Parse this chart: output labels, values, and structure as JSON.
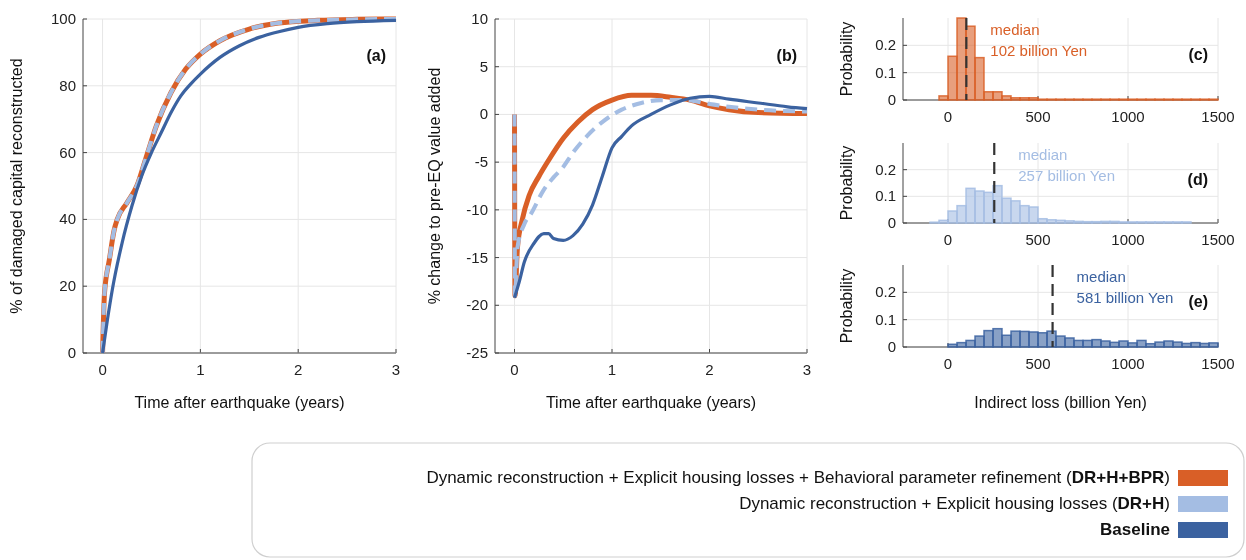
{
  "chart_data": [
    {
      "type": "line",
      "xlabel": "Time after earthquake (years)",
      "ylabel": "% of damaged capital reconstructed",
      "xlim": [
        -0.2,
        3
      ],
      "xticks": [
        0,
        1,
        2,
        3
      ],
      "ylim": [
        0,
        100
      ],
      "yticks": [
        0,
        20,
        40,
        60,
        80,
        100
      ],
      "grid": true,
      "legend": "bottom",
      "annotations": [
        "(a)"
      ],
      "series": [
        {
          "name": "Dynamic reconstruction + Explicit housing losses + Behavioral parameter refinement (DR+H+BPR)",
          "color": "#d95f27",
          "line_style": "solid",
          "x": [
            0,
            0.02,
            0.07,
            0.12,
            0.15,
            0.25,
            0.35,
            0.45,
            0.55,
            0.7,
            0.85,
            1.0,
            1.2,
            1.5,
            1.8,
            2.2,
            2.6,
            3
          ],
          "values": [
            0,
            18,
            28,
            37,
            40,
            45,
            50,
            59,
            68,
            78,
            85,
            89.5,
            93.5,
            97,
            98.8,
            99.6,
            99.9,
            100
          ]
        },
        {
          "name": "Dynamic reconstruction + Explicit housing losses (DR+H)",
          "color": "#a4bde3",
          "line_style": "dashed",
          "x": [
            0,
            0.02,
            0.07,
            0.12,
            0.15,
            0.25,
            0.35,
            0.45,
            0.55,
            0.7,
            0.85,
            1.0,
            1.2,
            1.5,
            1.8,
            2.2,
            2.6,
            3
          ],
          "values": [
            0,
            18,
            28,
            37,
            40,
            45,
            50,
            59,
            68,
            78,
            85,
            89.5,
            93.5,
            97,
            98.8,
            99.6,
            99.9,
            100
          ]
        },
        {
          "name": "Baseline",
          "color": "#3b62a0",
          "line_style": "solid",
          "x": [
            0,
            0.05,
            0.1,
            0.2,
            0.3,
            0.4,
            0.5,
            0.6,
            0.7,
            0.8,
            0.9,
            1.0,
            1.2,
            1.4,
            1.6,
            1.8,
            2.0,
            2.3,
            2.6,
            3
          ],
          "values": [
            0,
            10,
            19,
            33,
            44,
            53,
            60,
            66,
            72,
            77,
            80.5,
            83.5,
            88.5,
            92,
            94.5,
            96.2,
            97.5,
            98.6,
            99.2,
            99.6
          ]
        }
      ]
    },
    {
      "type": "line",
      "xlabel": "Time after earthquake (years)",
      "ylabel": "% change to pre-EQ value added",
      "xlim": [
        -0.2,
        3
      ],
      "xticks": [
        0,
        1,
        2,
        3
      ],
      "ylim": [
        -25,
        10
      ],
      "yticks": [
        -25,
        -20,
        -15,
        -10,
        -5,
        0,
        5,
        10
      ],
      "grid": true,
      "annotations": [
        "(b)"
      ],
      "series": [
        {
          "color": "#d95f27",
          "line_style": "solid",
          "x": [
            0,
            0.005,
            0.03,
            0.08,
            0.15,
            0.25,
            0.35,
            0.5,
            0.65,
            0.8,
            1.0,
            1.2,
            1.4,
            1.6,
            1.8,
            2.0,
            2.2,
            2.5,
            3
          ],
          "values": [
            0,
            -19,
            -14,
            -11,
            -8.5,
            -6.5,
            -4.8,
            -2.5,
            -0.8,
            0.5,
            1.5,
            2,
            2,
            1.8,
            1.5,
            0.9,
            0.5,
            0.2,
            0.1
          ]
        },
        {
          "color": "#a4bde3",
          "line_style": "dashed",
          "x": [
            0,
            0.005,
            0.03,
            0.1,
            0.17,
            0.3,
            0.4,
            0.5,
            0.6,
            0.75,
            0.9,
            1.1,
            1.3,
            1.5,
            1.75,
            2.0,
            2.2,
            2.5,
            3
          ],
          "values": [
            0,
            -19,
            -14,
            -11.5,
            -10.4,
            -7.9,
            -6.6,
            -5.5,
            -4,
            -2.2,
            -0.8,
            0.5,
            1.2,
            1.5,
            1.5,
            1.1,
            0.8,
            0.5,
            0.3
          ]
        },
        {
          "color": "#3b62a0",
          "line_style": "solid",
          "x": [
            0,
            0.05,
            0.1,
            0.2,
            0.3,
            0.35,
            0.4,
            0.5,
            0.6,
            0.7,
            0.8,
            0.9,
            1.0,
            1.1,
            1.2,
            1.4,
            1.6,
            1.8,
            2.0,
            2.2,
            2.5,
            2.8,
            3
          ],
          "values": [
            -19.2,
            -17.5,
            -15.5,
            -13.5,
            -12.5,
            -12.5,
            -13,
            -13.2,
            -12.7,
            -11.5,
            -9.5,
            -6.5,
            -3.5,
            -2.3,
            -1.2,
            0,
            1,
            1.7,
            1.9,
            1.6,
            1.2,
            0.8,
            0.6
          ]
        }
      ]
    },
    {
      "type": "histogram",
      "ylabel": "Probability",
      "xlim": [
        -250,
        1500
      ],
      "xticks": [
        0,
        500,
        1000,
        1500
      ],
      "ylim": [
        0,
        0.3
      ],
      "yticks": [
        0,
        0.1,
        0.2
      ],
      "grid": true,
      "annotations": [
        "(c)"
      ],
      "color": "#d95f27",
      "bins": [
        -50,
        0,
        50,
        100,
        150,
        200,
        250,
        300,
        350,
        400,
        450,
        500,
        550,
        600,
        650,
        700,
        750,
        800,
        850,
        900,
        950,
        1000,
        1050,
        1100,
        1150,
        1200,
        1250,
        1300,
        1350,
        1400,
        1450,
        1500
      ],
      "values": [
        0.015,
        0.16,
        0.3,
        0.27,
        0.155,
        0.03,
        0.03,
        0.015,
        0.008,
        0.008,
        0.008,
        0.003,
        0.003,
        0.003,
        0.003,
        0.003,
        0.003,
        0.003,
        0.003,
        0.003,
        0.003,
        0.003,
        0.003,
        0.003,
        0.003,
        0.003,
        0.003,
        0.003,
        0.003,
        0.003,
        0.003
      ],
      "ref_lines": [
        {
          "axis": "x",
          "value": 102,
          "label": "median\n102 billion Yen",
          "color": "#333333",
          "line_style": "dashed"
        }
      ]
    },
    {
      "type": "histogram",
      "ylabel": "Probability",
      "xlim": [
        -250,
        1500
      ],
      "xticks": [
        0,
        500,
        1000,
        1500
      ],
      "ylim": [
        0,
        0.3
      ],
      "yticks": [
        0,
        0.1,
        0.2
      ],
      "grid": true,
      "annotations": [
        "(d)"
      ],
      "color": "#a4bde3",
      "bins": [
        -100,
        -50,
        0,
        50,
        100,
        150,
        200,
        250,
        300,
        350,
        400,
        450,
        500,
        550,
        600,
        650,
        700,
        750,
        800,
        850,
        900,
        950,
        1000,
        1050,
        1100,
        1150,
        1200,
        1250,
        1300,
        1350
      ],
      "values": [
        0.003,
        0.01,
        0.045,
        0.065,
        0.13,
        0.12,
        0.115,
        0.14,
        0.093,
        0.083,
        0.065,
        0.06,
        0.016,
        0.012,
        0.01,
        0.008,
        0.006,
        0.005,
        0.005,
        0.006,
        0.006,
        0.004,
        0.004,
        0.004,
        0.004,
        0.004,
        0.004,
        0.004,
        0.004
      ],
      "ref_lines": [
        {
          "axis": "x",
          "value": 257,
          "label": "median\n257 billion Yen",
          "color": "#333333",
          "line_style": "dashed"
        }
      ]
    },
    {
      "type": "histogram",
      "xlabel": "Indirect loss (billion Yen)",
      "ylabel": "Probability",
      "xlim": [
        -250,
        1500
      ],
      "xticks": [
        0,
        500,
        1000,
        1500
      ],
      "ylim": [
        0,
        0.3
      ],
      "yticks": [
        0,
        0.1,
        0.2
      ],
      "grid": true,
      "annotations": [
        "(e)"
      ],
      "color": "#3b62a0",
      "bins": [
        0,
        50,
        100,
        150,
        200,
        250,
        300,
        350,
        400,
        450,
        500,
        550,
        600,
        650,
        700,
        750,
        800,
        850,
        900,
        950,
        1000,
        1050,
        1100,
        1150,
        1200,
        1250,
        1300,
        1350,
        1400,
        1450,
        1500
      ],
      "values": [
        0.01,
        0.016,
        0.024,
        0.04,
        0.06,
        0.067,
        0.043,
        0.058,
        0.057,
        0.055,
        0.052,
        0.058,
        0.04,
        0.033,
        0.024,
        0.024,
        0.027,
        0.022,
        0.017,
        0.022,
        0.015,
        0.024,
        0.012,
        0.018,
        0.022,
        0.018,
        0.013,
        0.016,
        0.013,
        0.015
      ],
      "ref_lines": [
        {
          "axis": "x",
          "value": 581,
          "label": "median\n581 billion Yen",
          "color": "#333333",
          "line_style": "dashed"
        }
      ]
    }
  ]
}
